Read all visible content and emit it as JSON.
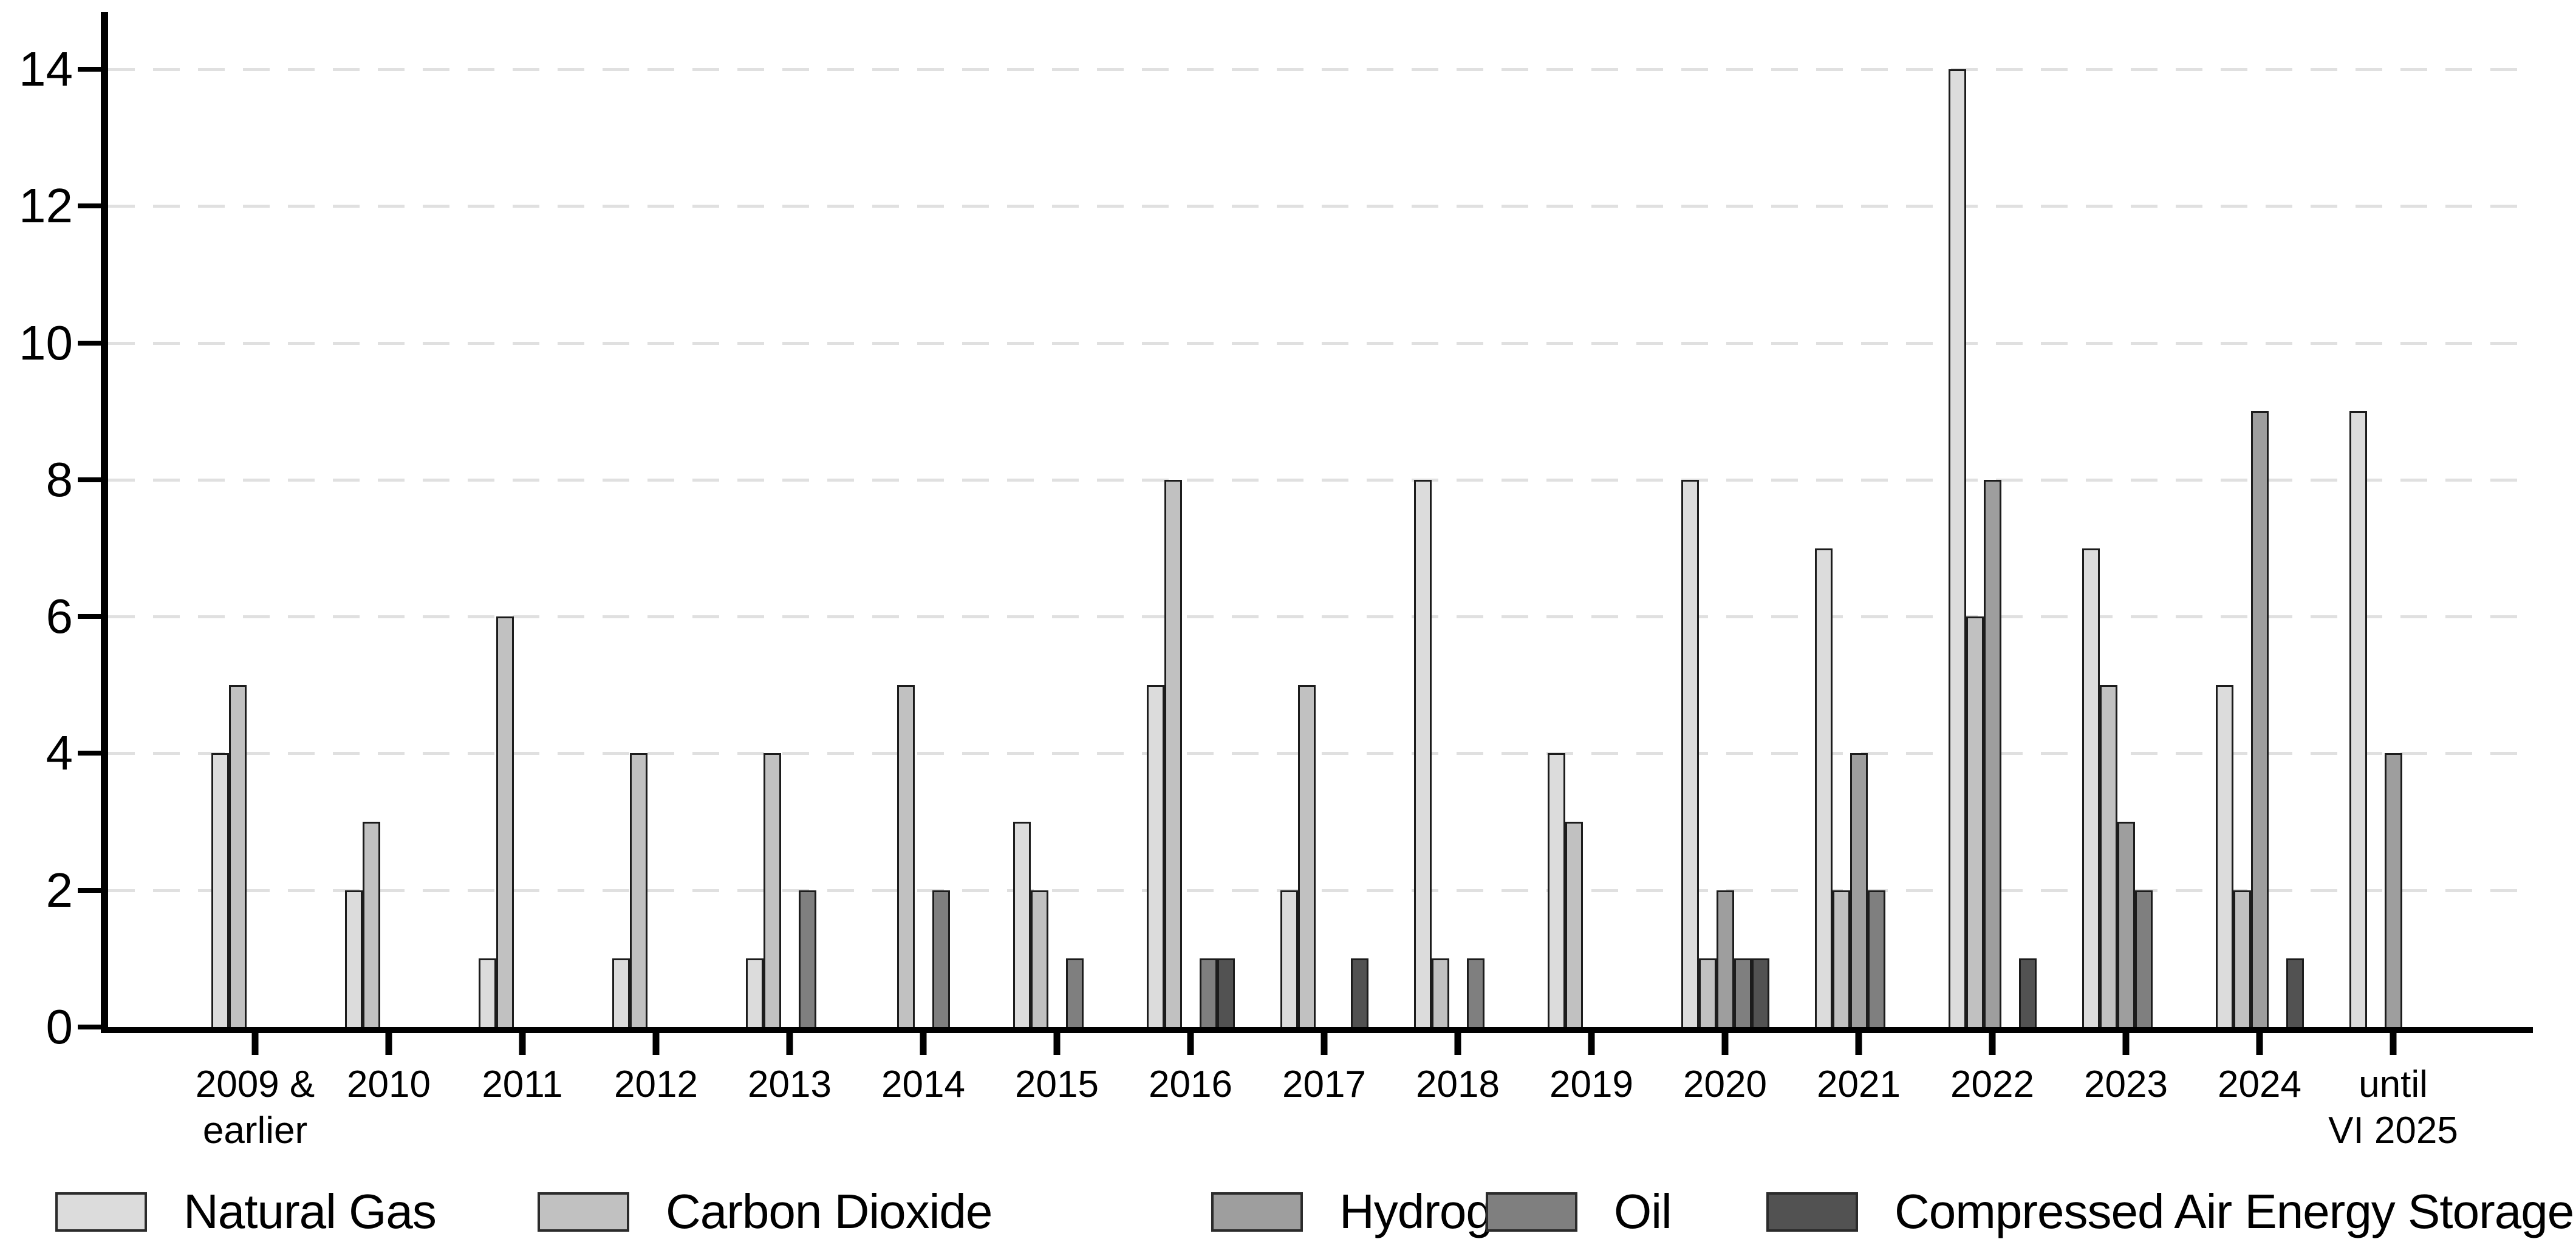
{
  "chart_data": {
    "type": "bar",
    "title": "",
    "xlabel": "",
    "ylabel": "",
    "categories": [
      "2009 &\nearlier",
      "2010",
      "2011",
      "2012",
      "2013",
      "2014",
      "2015",
      "2016",
      "2017",
      "2018",
      "2019",
      "2020",
      "2021",
      "2022",
      "2023",
      "2024",
      "until\nVI 2025"
    ],
    "series": [
      {
        "name": "Natural Gas",
        "color": "#dcdcdc",
        "values": [
          4,
          2,
          1,
          1,
          1,
          0,
          3,
          5,
          2,
          8,
          4,
          8,
          7,
          14,
          7,
          5,
          9
        ]
      },
      {
        "name": "Carbon Dioxide",
        "color": "#c1c1c1",
        "values": [
          5,
          3,
          6,
          4,
          4,
          5,
          2,
          8,
          5,
          1,
          3,
          1,
          2,
          6,
          5,
          2,
          0
        ]
      },
      {
        "name": "Hydrogen",
        "color": "#9e9e9e",
        "values": [
          0,
          0,
          0,
          0,
          0,
          0,
          0,
          0,
          0,
          0,
          0,
          2,
          4,
          8,
          3,
          9,
          4
        ]
      },
      {
        "name": "Oil",
        "color": "#7f7f7f",
        "values": [
          0,
          0,
          0,
          0,
          2,
          2,
          1,
          1,
          0,
          1,
          0,
          1,
          2,
          0,
          2,
          0,
          0
        ]
      },
      {
        "name": "Compressed Air Energy Storage",
        "color": "#525252",
        "values": [
          0,
          0,
          0,
          0,
          0,
          0,
          0,
          1,
          1,
          0,
          0,
          1,
          0,
          1,
          0,
          1,
          0
        ]
      }
    ],
    "ylim": [
      0,
      14
    ],
    "yticks": [
      0,
      2,
      4,
      6,
      8,
      10,
      12,
      14
    ],
    "grid": "horizontal-dashed",
    "legend_position": "bottom",
    "axis_color": "#000000",
    "gridline_color": "#e0e0e0",
    "bar_border_color": "#1c1c1c"
  },
  "legend_layout_lefts": [
    91,
    885,
    1994,
    2446,
    2908
  ]
}
